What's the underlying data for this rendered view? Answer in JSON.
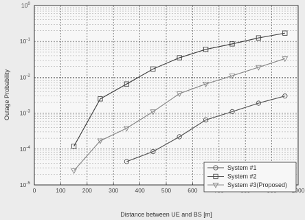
{
  "chart_data": {
    "type": "line",
    "title": "",
    "xlabel": "Distance between UE and BS [m]",
    "ylabel": "Outage Probability",
    "xlim": [
      0,
      1000
    ],
    "ylim": [
      1e-05,
      1
    ],
    "yscale": "log",
    "xticks": [
      0,
      100,
      200,
      300,
      400,
      500,
      600,
      700,
      800,
      900,
      1000
    ],
    "yticks": [
      {
        "value": 1e-05,
        "mantissa": "10",
        "exp": "-5"
      },
      {
        "value": 0.0001,
        "mantissa": "10",
        "exp": "-4"
      },
      {
        "value": 0.001,
        "mantissa": "10",
        "exp": "-3"
      },
      {
        "value": 0.01,
        "mantissa": "10",
        "exp": "-2"
      },
      {
        "value": 0.1,
        "mantissa": "10",
        "exp": "-1"
      },
      {
        "value": 1,
        "mantissa": "10",
        "exp": "0"
      }
    ],
    "grid": true,
    "legend_position": "bottom-right",
    "series": [
      {
        "name": "System #1",
        "marker": "circle",
        "color": "#555555",
        "x": [
          350,
          450,
          550,
          650,
          750,
          850,
          950
        ],
        "y": [
          4.5e-05,
          8.5e-05,
          0.00022,
          0.00065,
          0.0011,
          0.0019,
          0.003
        ]
      },
      {
        "name": "System #2",
        "marker": "square",
        "color": "#444444",
        "x": [
          150,
          250,
          350,
          450,
          550,
          650,
          750,
          850,
          950
        ],
        "y": [
          0.00012,
          0.0025,
          0.0065,
          0.017,
          0.035,
          0.06,
          0.085,
          0.125,
          0.17
        ]
      },
      {
        "name": "System #3(Proposed)",
        "marker": "triangle-down",
        "color": "#888888",
        "x": [
          150,
          250,
          350,
          450,
          550,
          650,
          750,
          850,
          950
        ],
        "y": [
          2.5e-05,
          0.00017,
          0.00038,
          0.0011,
          0.0035,
          0.0065,
          0.011,
          0.019,
          0.033
        ]
      }
    ]
  }
}
